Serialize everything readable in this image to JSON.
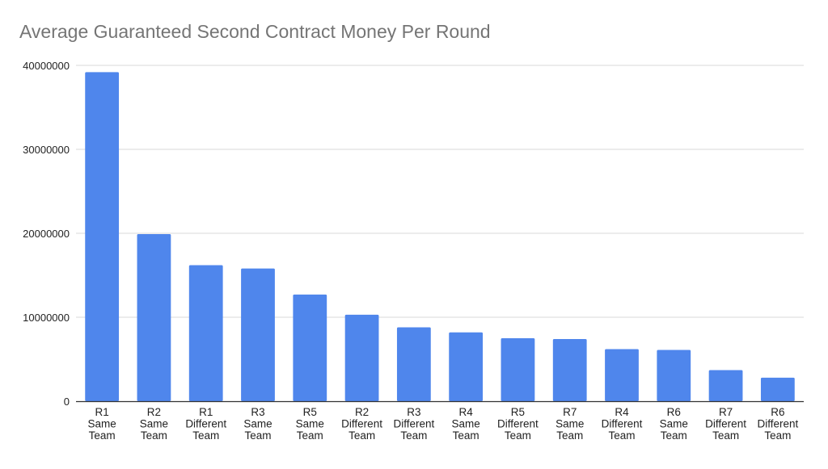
{
  "chart_data": {
    "type": "bar",
    "title": "Average Guaranteed Second Contract Money Per Round",
    "xlabel": "",
    "ylabel": "",
    "categories": [
      "R1 Same Team",
      "R2 Same Team",
      "R1 Different Team",
      "R3 Same Team",
      "R5 Same Team",
      "R2 Different Team",
      "R3 Different Team",
      "R4 Same Team",
      "R5 Different Team",
      "R7 Same Team",
      "R4 Different Team",
      "R6 Same Team",
      "R7 Different Team",
      "R6 Different Team"
    ],
    "values": [
      39200000,
      19900000,
      16200000,
      15800000,
      12700000,
      10300000,
      8800000,
      8200000,
      7500000,
      7400000,
      6200000,
      6100000,
      3700000,
      2800000
    ],
    "ylim": [
      0,
      40000000
    ],
    "yticks": [
      "0",
      "10000000",
      "20000000",
      "30000000",
      "40000000"
    ],
    "grid": true,
    "legend": "none",
    "colors": {
      "bar": "#4f86ec",
      "grid": "#d9d9d9",
      "axis": "#333333"
    }
  }
}
